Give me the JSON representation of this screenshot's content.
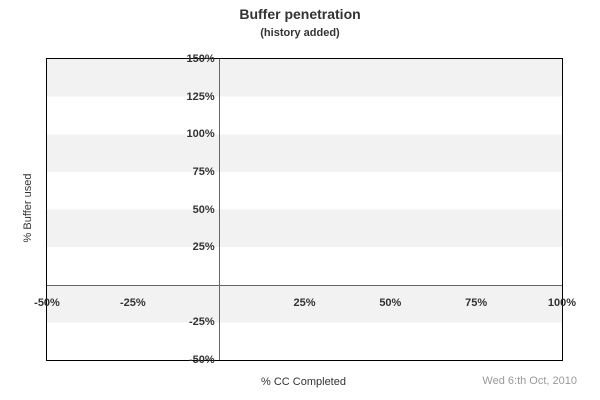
{
  "chart_data": {
    "type": "line",
    "title": "Buffer penetration",
    "subtitle": "(history added)",
    "xlabel": "% CC Completed",
    "ylabel": "% Buffer used",
    "xlim": [
      -50,
      100
    ],
    "ylim": [
      -50,
      150
    ],
    "x_ticks": [
      {
        "value": -50,
        "label": "-50%"
      },
      {
        "value": -25,
        "label": "-25%"
      },
      {
        "value": 25,
        "label": "25%"
      },
      {
        "value": 50,
        "label": "50%"
      },
      {
        "value": 75,
        "label": "75%"
      },
      {
        "value": 100,
        "label": "100%"
      }
    ],
    "y_ticks": [
      {
        "value": 150,
        "label": "150%"
      },
      {
        "value": 125,
        "label": "125%"
      },
      {
        "value": 100,
        "label": "100%"
      },
      {
        "value": 75,
        "label": "75%"
      },
      {
        "value": 50,
        "label": "50%"
      },
      {
        "value": 25,
        "label": "25%"
      },
      {
        "value": -25,
        "label": "-25%"
      },
      {
        "value": -50,
        "label": "-50%"
      }
    ],
    "series": [],
    "band_step": 25,
    "grid": "alternating horizontal bands, gray on 125-150 / 75-100 / 25-50 / -25-0",
    "legend": "none",
    "zero_axes": true,
    "annotations": [
      "Wed 6:th Oct, 2010"
    ]
  },
  "colors": {
    "background": "#ffffff",
    "band": "#f2f2f2",
    "plot_border": "#000000",
    "zero_axis": "#666666",
    "text": "#333333",
    "date_text": "#999999"
  }
}
